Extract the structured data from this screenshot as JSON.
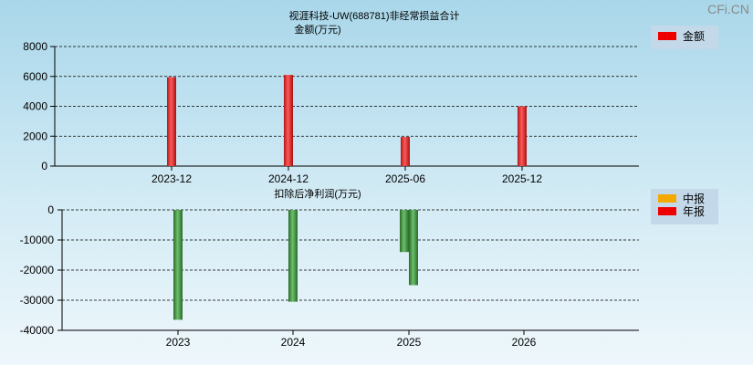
{
  "watermark": "CFi.CN",
  "top": {
    "title": "视涯科技-UW(688781)非经常损益合计",
    "subtitle": "金额(万元)",
    "legend": [
      {
        "label": "金额",
        "color": "#ee0000"
      }
    ]
  },
  "bottom": {
    "title": "扣除后净利润(万元)",
    "legend": [
      {
        "label": "中报",
        "color": "#f5a800"
      },
      {
        "label": "年报",
        "color": "#ee0000"
      }
    ]
  },
  "chart_data": [
    {
      "type": "bar",
      "title": "视涯科技-UW(688781)非经常损益合计",
      "ylabel": "金额(万元)",
      "categories": [
        "2023-12",
        "2024-12",
        "2025-06",
        "2025-12"
      ],
      "yticks": [
        0,
        2000,
        4000,
        6000,
        8000
      ],
      "ylim": [
        0,
        8000
      ],
      "grid": true,
      "legend_position": "top-right",
      "series": [
        {
          "name": "金额",
          "color": "#e03030",
          "values": [
            5950,
            6100,
            1950,
            4000
          ]
        }
      ]
    },
    {
      "type": "bar",
      "title": "扣除后净利润(万元)",
      "categories": [
        "2023",
        "2024",
        "2025",
        "2026"
      ],
      "yticks": [
        0,
        -10000,
        -20000,
        -30000,
        -40000
      ],
      "ylim": [
        -40000,
        0
      ],
      "grid": true,
      "legend_position": "top-right",
      "bars": [
        {
          "category": "2023",
          "value": -36500,
          "color": "#3f8f3f"
        },
        {
          "category": "2024",
          "value": -30500,
          "color": "#3f8f3f"
        },
        {
          "category": "2025",
          "value": -14000,
          "color": "#3f8f3f"
        },
        {
          "category": "2025",
          "value": -25000,
          "color": "#3f8f3f"
        }
      ]
    }
  ]
}
